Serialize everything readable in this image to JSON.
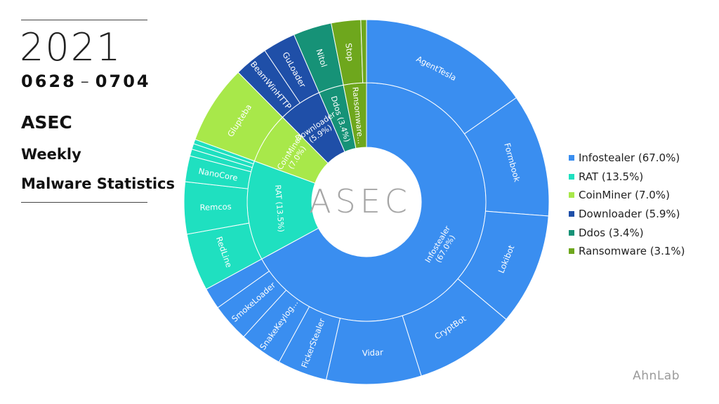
{
  "header": {
    "year": "2021",
    "date_start": "0628",
    "date_sep": "–",
    "date_end": "0704",
    "title_line1": "ASEC",
    "title_line2": "Weekly",
    "title_line3": "Malware Statistics"
  },
  "center_logo": "ASEC",
  "brand": "AhnLab",
  "legend": [
    {
      "label": "Infostealer (67.0%)",
      "color": "#3a8ef0"
    },
    {
      "label": "RAT (13.5%)",
      "color": "#1fe0c0"
    },
    {
      "label": "CoinMiner (7.0%)",
      "color": "#a8e84a"
    },
    {
      "label": "Downloader (5.9%)",
      "color": "#1f4fa8"
    },
    {
      "label": "Ddos (3.4%)",
      "color": "#169277"
    },
    {
      "label": "Ransomware (3.1%)",
      "color": "#6ea71d"
    }
  ],
  "chart_data": {
    "type": "sunburst",
    "categories": [
      {
        "name": "Infostealer",
        "value": 67.0,
        "label": "Infostealer\n(67.0%)",
        "color": "#3a8ef0",
        "children": [
          {
            "name": "AgentTesla",
            "value": 15.3,
            "label": "AgentTesla"
          },
          {
            "name": "Formbook",
            "value": 10.9,
            "label": "Formbook"
          },
          {
            "name": "Lokibot",
            "value": 9.9,
            "label": "Lokibot"
          },
          {
            "name": "CryptBot",
            "value": 9.0,
            "label": "CryptBot"
          },
          {
            "name": "Vidar",
            "value": 8.4,
            "label": "Vidar"
          },
          {
            "name": "FickerStealer",
            "value": 4.4,
            "label": "FickerStealer"
          },
          {
            "name": "SnakeKeylogger",
            "value": 3.8,
            "label": "SnakeKeylog..."
          },
          {
            "name": "SmokeLoader",
            "value": 3.4,
            "label": "SmokeLoader"
          },
          {
            "name": "Other",
            "value": 1.9,
            "label": ""
          }
        ]
      },
      {
        "name": "RAT",
        "value": 13.5,
        "label": "RAT (13.5%)",
        "color": "#1fe0c0",
        "children": [
          {
            "name": "RedLine",
            "value": 5.1,
            "label": "RedLine"
          },
          {
            "name": "Remcos",
            "value": 4.6,
            "label": "Remcos"
          },
          {
            "name": "NanoCore",
            "value": 2.3,
            "label": "NanoCore"
          },
          {
            "name": "Other1",
            "value": 0.6,
            "label": ""
          },
          {
            "name": "Other2",
            "value": 0.5,
            "label": ""
          },
          {
            "name": "Other3",
            "value": 0.4,
            "label": ""
          }
        ]
      },
      {
        "name": "CoinMiner",
        "value": 7.0,
        "label": "CoinMiner\n(7.0%)",
        "color": "#a8e84a",
        "children": [
          {
            "name": "Glupteba",
            "value": 7.0,
            "label": "Glupteba"
          }
        ]
      },
      {
        "name": "Downloader",
        "value": 5.9,
        "label": "Downloader\n(5.9%)",
        "color": "#1f4fa8",
        "children": [
          {
            "name": "BeamWinHTTP",
            "value": 3.0,
            "label": "BeamWinHTTP"
          },
          {
            "name": "GuLoader",
            "value": 2.9,
            "label": "GuLoader"
          }
        ]
      },
      {
        "name": "Ddos",
        "value": 3.4,
        "label": "Ddos (3.4%)",
        "color": "#169277",
        "children": [
          {
            "name": "Nitol",
            "value": 3.4,
            "label": "Nitol"
          }
        ]
      },
      {
        "name": "Ransomware",
        "value": 3.1,
        "label": "Ransomware...",
        "color": "#6ea71d",
        "children": [
          {
            "name": "Stop",
            "value": 2.6,
            "label": "Stop"
          },
          {
            "name": "Other",
            "value": 0.5,
            "label": ""
          }
        ]
      }
    ]
  }
}
